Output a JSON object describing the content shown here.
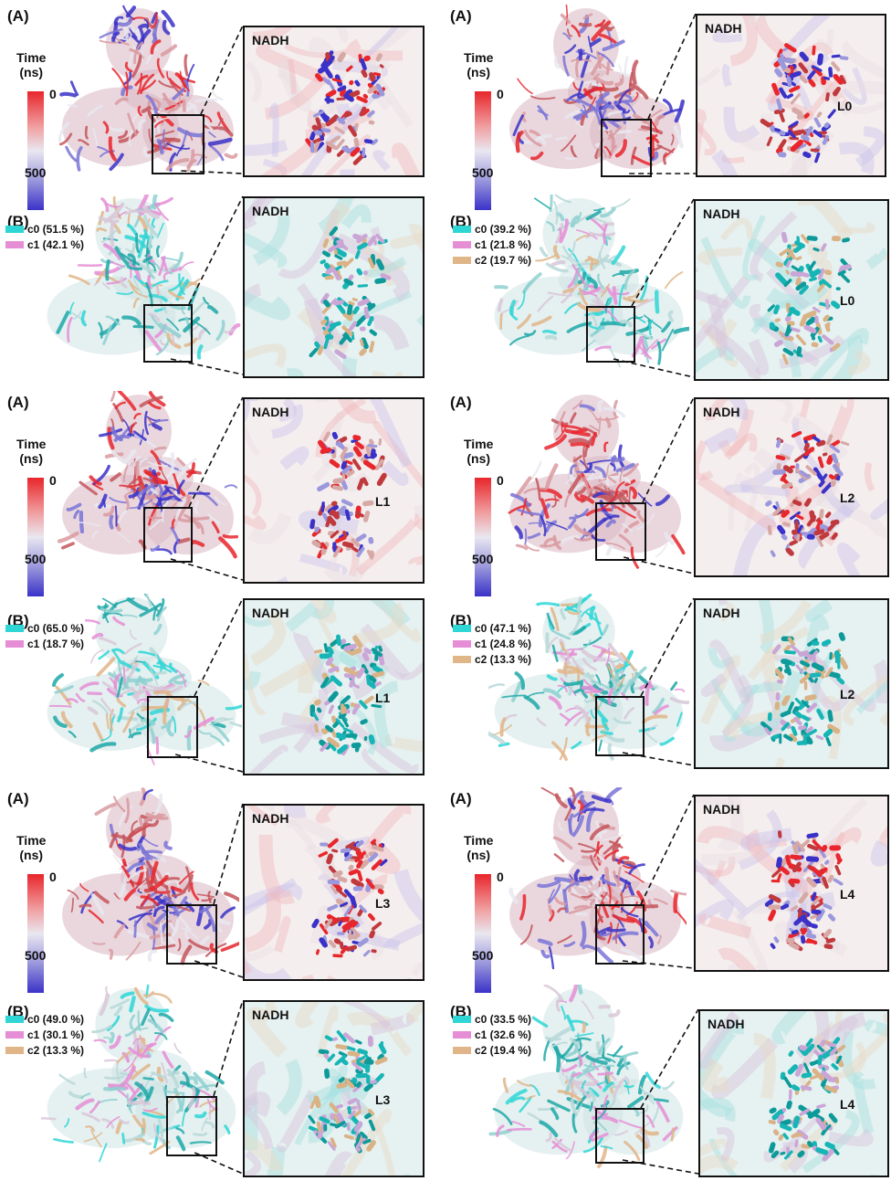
{
  "panels": [
    {
      "row": 0,
      "col": 0,
      "kind": "A",
      "label": "(A)",
      "time_label": "Time\n(ns)",
      "cmax": "0",
      "cmin": "500",
      "inset_title": "NADH",
      "ligand": ""
    },
    {
      "row": 0,
      "col": 1,
      "kind": "A",
      "label": "(A)",
      "time_label": "Time\n(ns)",
      "cmax": "0",
      "cmin": "500",
      "inset_title": "NADH",
      "ligand": "L0"
    },
    {
      "row": 1,
      "col": 0,
      "kind": "B",
      "label": "(B)",
      "legend": [
        {
          "text": "c0 (51.5 %)",
          "color": "#2fd6d6"
        },
        {
          "text": "c1 (42.1 %)",
          "color": "#e58ed6"
        }
      ],
      "inset_title": "NADH",
      "ligand": ""
    },
    {
      "row": 1,
      "col": 1,
      "kind": "B",
      "label": "(B)",
      "legend": [
        {
          "text": "c0 (39.2 %)",
          "color": "#2fd6d6"
        },
        {
          "text": "c1 (21.8 %)",
          "color": "#e58ed6"
        },
        {
          "text": "c2 (19.7 %)",
          "color": "#e0b588"
        }
      ],
      "inset_title": "NADH",
      "ligand": "L0"
    },
    {
      "row": 2,
      "col": 0,
      "kind": "A",
      "label": "(A)",
      "time_label": "Time\n(ns)",
      "cmax": "0",
      "cmin": "500",
      "inset_title": "NADH",
      "ligand": "L1"
    },
    {
      "row": 2,
      "col": 1,
      "kind": "A",
      "label": "(A)",
      "time_label": "Time\n(ns)",
      "cmax": "0",
      "cmin": "500",
      "inset_title": "NADH",
      "ligand": "L2"
    },
    {
      "row": 3,
      "col": 0,
      "kind": "B",
      "label": "(B)",
      "legend": [
        {
          "text": "c0 (65.0 %)",
          "color": "#2fd6d6"
        },
        {
          "text": "c1 (18.7 %)",
          "color": "#e58ed6"
        }
      ],
      "inset_title": "NADH",
      "ligand": "L1"
    },
    {
      "row": 3,
      "col": 1,
      "kind": "B",
      "label": "(B)",
      "legend": [
        {
          "text": "c0 (47.1 %)",
          "color": "#2fd6d6"
        },
        {
          "text": "c1 (24.8 %)",
          "color": "#e58ed6"
        },
        {
          "text": "c2 (13.3 %)",
          "color": "#e0b588"
        }
      ],
      "inset_title": "NADH",
      "ligand": "L2"
    },
    {
      "row": 4,
      "col": 0,
      "kind": "A",
      "label": "(A)",
      "time_label": "Time\n(ns)",
      "cmax": "0",
      "cmin": "500",
      "inset_title": "NADH",
      "ligand": "L3"
    },
    {
      "row": 4,
      "col": 1,
      "kind": "A",
      "label": "(A)",
      "time_label": "Time\n(ns)",
      "cmax": "0",
      "cmin": "500",
      "inset_title": "NADH",
      "ligand": "L4"
    },
    {
      "row": 5,
      "col": 0,
      "kind": "B",
      "label": "(B)",
      "legend": [
        {
          "text": "c0 (49.0 %)",
          "color": "#2fd6d6"
        },
        {
          "text": "c1 (30.1 %)",
          "color": "#e58ed6"
        },
        {
          "text": "c2 (13.3 %)",
          "color": "#e0b588"
        }
      ],
      "inset_title": "NADH",
      "ligand": "L3"
    },
    {
      "row": 5,
      "col": 1,
      "kind": "B",
      "label": "(B)",
      "legend": [
        {
          "text": "c0 (33.5 %)",
          "color": "#2fd6d6"
        },
        {
          "text": "c1 (32.6 %)",
          "color": "#e58ed6"
        },
        {
          "text": "c2 (19.4 %)",
          "color": "#e0b588"
        }
      ],
      "inset_title": "NADH",
      "ligand": "L4"
    }
  ],
  "colors": {
    "red": "#e8262b",
    "blue": "#3a32c8",
    "white": "#e9e7f0",
    "cyan": "#2fd6d6",
    "pink": "#e58ed6",
    "tan": "#e0b588"
  }
}
